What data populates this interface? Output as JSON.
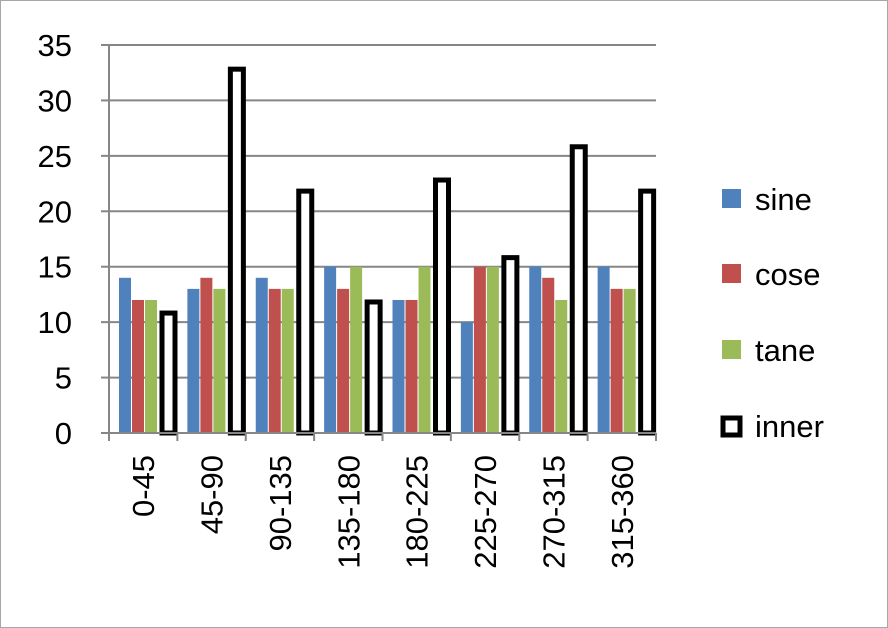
{
  "chart_data": {
    "type": "bar",
    "title": "",
    "xlabel": "",
    "ylabel": "",
    "ylim": [
      0,
      35
    ],
    "yticks": [
      0,
      5,
      10,
      15,
      20,
      25,
      30,
      35
    ],
    "grid": true,
    "legend_position": "right",
    "categories": [
      "0-45",
      "45-90",
      "90-135",
      "135-180",
      "180-225",
      "225-270",
      "270-315",
      "315-360"
    ],
    "series": [
      {
        "name": "sine",
        "color": "#4F81BD",
        "values": [
          14,
          13,
          14,
          15,
          12,
          10,
          15,
          15
        ]
      },
      {
        "name": "cose",
        "color": "#C0504D",
        "values": [
          12,
          14,
          13,
          13,
          12,
          15,
          14,
          13
        ]
      },
      {
        "name": "tane",
        "color": "#9BBB59",
        "values": [
          12,
          13,
          13,
          15,
          15,
          15,
          12,
          13
        ]
      },
      {
        "name": "inner",
        "color": "#FFFFFF",
        "stroke": "#000000",
        "values": [
          11,
          33,
          22,
          12,
          23,
          16,
          26,
          22
        ]
      }
    ]
  }
}
